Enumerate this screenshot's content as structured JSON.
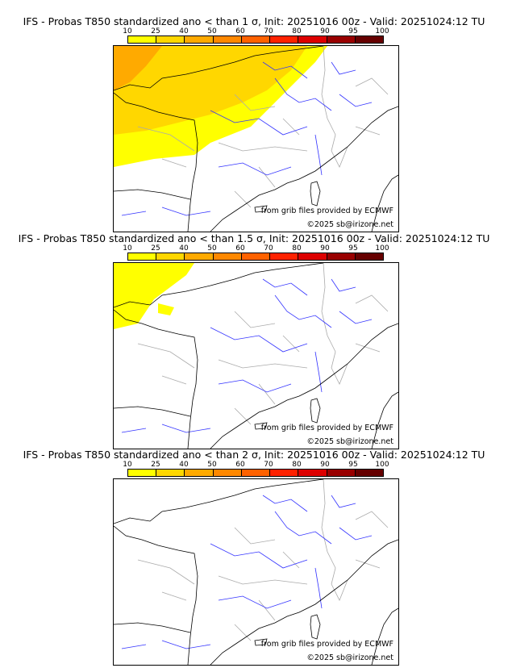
{
  "colorbar": {
    "ticks": [
      "10",
      "25",
      "40",
      "50",
      "60",
      "70",
      "80",
      "90",
      "95",
      "100"
    ],
    "colors": [
      "#ffff00",
      "#ffd700",
      "#ffaa00",
      "#ff8800",
      "#ff6200",
      "#ff2200",
      "#dd0000",
      "#990000",
      "#660000"
    ]
  },
  "panels": [
    {
      "title": "IFS - Probas T850  standardized ano < than 1 σ, Init: 20251016 00z - Valid: 20251024:12 TU",
      "max_class": "40-50"
    },
    {
      "title": "IFS - Probas T850  standardized ano < than 1.5 σ, Init: 20251016 00z - Valid: 20251024:12 TU",
      "max_class": "10-25"
    },
    {
      "title": "IFS - Probas T850  standardized ano < than 2 σ, Init: 20251016 00z - Valid: 20251024:12 TU",
      "max_class": "none"
    }
  ],
  "credits": {
    "source": "from grib files provided by ECMWF",
    "copyright": "©2025 sb@irizone.net"
  }
}
